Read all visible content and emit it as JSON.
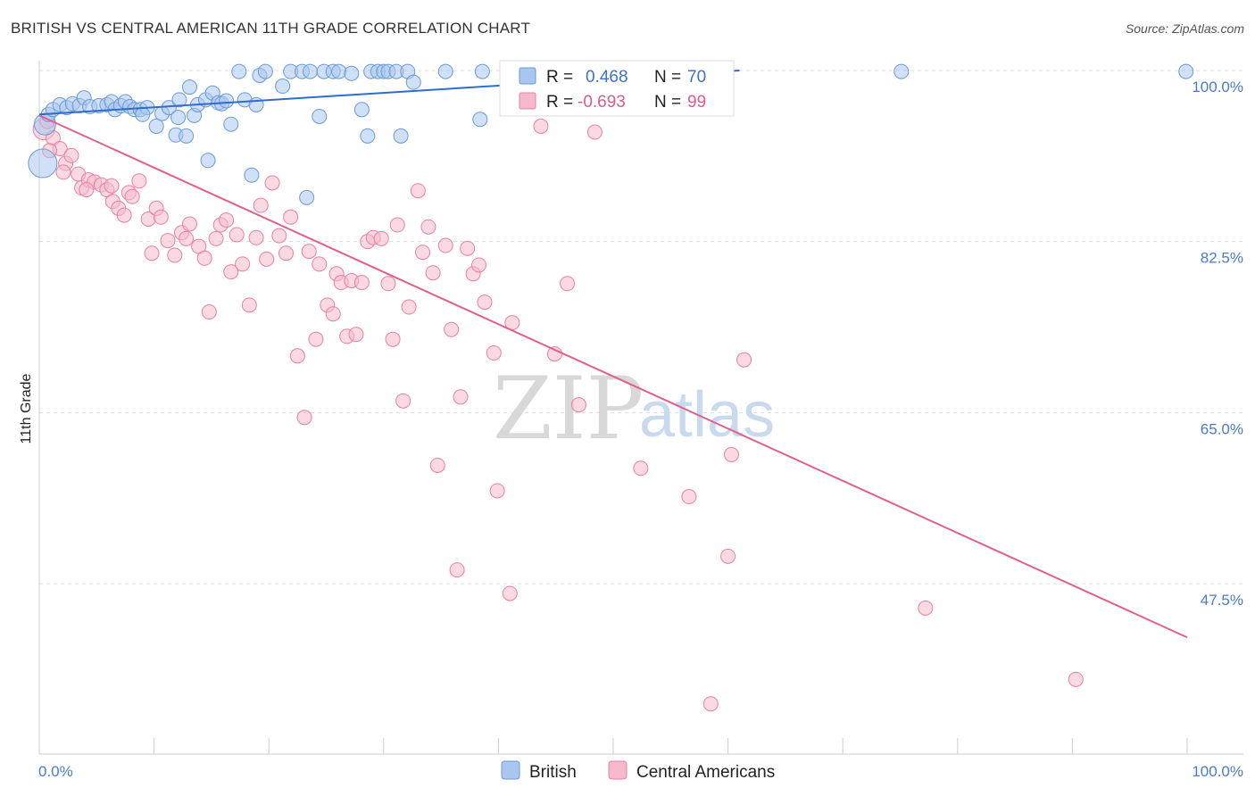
{
  "header": {
    "title": "BRITISH VS CENTRAL AMERICAN 11TH GRADE CORRELATION CHART",
    "source": "Source: ZipAtlas.com"
  },
  "watermark": {
    "zip": "ZIP",
    "atlas": "atlas"
  },
  "legend": {
    "r_label": "R =",
    "n_label": "N =",
    "british": {
      "r": "0.468",
      "n": "70"
    },
    "central": {
      "r": "-0.693",
      "n": "99"
    }
  },
  "bottom_legend": {
    "british": "British",
    "central": "Central Americans"
  },
  "colors": {
    "british_fill": "#a9c6ee",
    "british_stroke": "#6a9bd8",
    "british_line": "#2f6ccc",
    "central_fill": "#f6b9cc",
    "central_stroke": "#e8819f",
    "central_line": "#e0608e",
    "grid": "#dddddd",
    "tick_text": "#4a7cc9"
  },
  "chart_data": {
    "type": "scatter",
    "title": "BRITISH VS CENTRAL AMERICAN 11TH GRADE CORRELATION CHART",
    "xlabel": "",
    "ylabel": "11th Grade",
    "xlim": [
      0,
      100
    ],
    "ylim": [
      31,
      102
    ],
    "x_tick_labels": [
      "0.0%",
      "100.0%"
    ],
    "y_ticks": [
      47.5,
      65.0,
      82.5,
      100.0
    ],
    "y_tick_labels": [
      "47.5%",
      "65.0%",
      "82.5%",
      "100.0%"
    ],
    "grid": true,
    "legend_placement": "top-center",
    "series": [
      {
        "name": "British",
        "r": 0.468,
        "n": 70,
        "trendline": {
          "x": [
            0,
            61
          ],
          "y": [
            95.5,
            100.0
          ]
        },
        "points": [
          [
            0.3,
            90.5,
            16
          ],
          [
            0.5,
            94.5,
            12
          ],
          [
            0.8,
            95.5,
            8
          ],
          [
            1.2,
            96.0,
            8
          ],
          [
            1.8,
            96.5,
            8
          ],
          [
            2.4,
            96.2,
            8
          ],
          [
            2.9,
            96.6,
            8
          ],
          [
            3.5,
            96.4,
            8
          ],
          [
            3.9,
            97.2,
            8
          ],
          [
            4.4,
            96.3,
            8
          ],
          [
            5.2,
            96.4,
            8
          ],
          [
            5.9,
            96.5,
            8
          ],
          [
            6.3,
            96.8,
            8
          ],
          [
            6.6,
            96.0,
            8
          ],
          [
            7.1,
            96.4,
            8
          ],
          [
            7.5,
            96.8,
            8
          ],
          [
            7.9,
            96.3,
            8
          ],
          [
            8.3,
            96.0,
            8
          ],
          [
            8.8,
            96.0,
            8
          ],
          [
            9.4,
            96.2,
            8
          ],
          [
            9.0,
            95.5,
            8
          ],
          [
            10.2,
            94.3,
            8
          ],
          [
            10.7,
            95.6,
            8
          ],
          [
            11.3,
            96.2,
            8
          ],
          [
            11.9,
            93.4,
            8
          ],
          [
            12.1,
            95.2,
            8
          ],
          [
            12.2,
            97.0,
            8
          ],
          [
            12.8,
            93.3,
            8
          ],
          [
            13.1,
            98.3,
            8
          ],
          [
            13.5,
            95.4,
            8
          ],
          [
            13.8,
            96.5,
            8
          ],
          [
            14.5,
            97.0,
            8
          ],
          [
            14.7,
            90.8,
            8
          ],
          [
            15.1,
            97.7,
            8
          ],
          [
            15.6,
            96.7,
            8
          ],
          [
            15.9,
            96.6,
            8
          ],
          [
            16.3,
            96.9,
            8
          ],
          [
            16.7,
            94.5,
            8
          ],
          [
            17.4,
            99.9,
            8
          ],
          [
            17.9,
            97.0,
            8
          ],
          [
            18.5,
            89.3,
            8
          ],
          [
            18.9,
            96.5,
            8
          ],
          [
            19.2,
            99.5,
            8
          ],
          [
            19.7,
            99.9,
            8
          ],
          [
            21.2,
            98.4,
            8
          ],
          [
            21.9,
            99.9,
            8
          ],
          [
            22.9,
            99.9,
            8
          ],
          [
            23.3,
            87.0,
            8
          ],
          [
            23.6,
            99.9,
            8
          ],
          [
            24.4,
            95.3,
            8
          ],
          [
            24.8,
            99.9,
            8
          ],
          [
            25.6,
            99.9,
            8
          ],
          [
            26.1,
            99.9,
            8
          ],
          [
            27.2,
            99.7,
            8
          ],
          [
            28.1,
            96.0,
            8
          ],
          [
            28.6,
            93.3,
            8
          ],
          [
            28.9,
            99.9,
            8
          ],
          [
            29.5,
            99.9,
            8
          ],
          [
            30.0,
            99.9,
            8
          ],
          [
            30.4,
            99.9,
            8
          ],
          [
            31.1,
            99.9,
            8
          ],
          [
            31.5,
            93.3,
            8
          ],
          [
            32.1,
            99.9,
            8
          ],
          [
            32.6,
            98.8,
            8
          ],
          [
            35.4,
            99.9,
            8
          ],
          [
            38.4,
            95.0,
            8
          ],
          [
            38.6,
            99.9,
            8
          ],
          [
            47.2,
            99.9,
            8
          ],
          [
            75.1,
            99.9,
            8
          ],
          [
            99.9,
            99.9,
            8
          ]
        ]
      },
      {
        "name": "Central Americans",
        "r": -0.693,
        "n": 99,
        "trendline": {
          "x": [
            0,
            100
          ],
          "y": [
            95.4,
            42.0
          ]
        },
        "points": [
          [
            0.4,
            94.0,
            12
          ],
          [
            0.7,
            94.8,
            8
          ],
          [
            1.2,
            93.1,
            8
          ],
          [
            1.8,
            92.0,
            8
          ],
          [
            2.3,
            90.5,
            8
          ],
          [
            2.8,
            91.3,
            8
          ],
          [
            3.4,
            89.4,
            8
          ],
          [
            3.7,
            88.0,
            8
          ],
          [
            4.3,
            88.8,
            8
          ],
          [
            4.8,
            88.6,
            8
          ],
          [
            5.4,
            88.3,
            8
          ],
          [
            5.9,
            87.8,
            8
          ],
          [
            6.3,
            88.2,
            8
          ],
          [
            6.4,
            86.6,
            8
          ],
          [
            6.9,
            85.9,
            8
          ],
          [
            7.4,
            85.2,
            8
          ],
          [
            7.8,
            87.5,
            8
          ],
          [
            8.1,
            87.1,
            8
          ],
          [
            8.7,
            88.7,
            8
          ],
          [
            9.5,
            84.8,
            8
          ],
          [
            9.8,
            81.3,
            8
          ],
          [
            10.2,
            85.9,
            8
          ],
          [
            10.6,
            85.0,
            8
          ],
          [
            11.2,
            82.6,
            8
          ],
          [
            11.8,
            81.1,
            8
          ],
          [
            12.4,
            83.4,
            8
          ],
          [
            12.8,
            82.8,
            8
          ],
          [
            13.1,
            84.3,
            8
          ],
          [
            13.9,
            82.0,
            8
          ],
          [
            14.4,
            80.8,
            8
          ],
          [
            14.8,
            75.3,
            8
          ],
          [
            15.4,
            82.8,
            8
          ],
          [
            15.8,
            84.2,
            8
          ],
          [
            16.3,
            84.7,
            8
          ],
          [
            16.7,
            79.4,
            8
          ],
          [
            17.2,
            83.2,
            8
          ],
          [
            17.7,
            80.2,
            8
          ],
          [
            18.3,
            76.0,
            8
          ],
          [
            18.9,
            82.9,
            8
          ],
          [
            19.3,
            86.2,
            8
          ],
          [
            19.8,
            80.7,
            8
          ],
          [
            20.3,
            88.5,
            8
          ],
          [
            20.9,
            83.1,
            8
          ],
          [
            21.5,
            81.3,
            8
          ],
          [
            21.9,
            85.0,
            8
          ],
          [
            22.5,
            70.8,
            8
          ],
          [
            23.1,
            64.5,
            8
          ],
          [
            23.5,
            81.5,
            8
          ],
          [
            24.1,
            72.5,
            8
          ],
          [
            24.4,
            80.2,
            8
          ],
          [
            25.1,
            76.0,
            8
          ],
          [
            25.6,
            75.1,
            8
          ],
          [
            25.9,
            79.2,
            8
          ],
          [
            26.3,
            78.3,
            8
          ],
          [
            26.8,
            72.8,
            8
          ],
          [
            27.2,
            78.5,
            8
          ],
          [
            27.6,
            73.0,
            8
          ],
          [
            28.1,
            78.3,
            8
          ],
          [
            28.6,
            82.5,
            8
          ],
          [
            29.1,
            82.9,
            8
          ],
          [
            29.8,
            82.8,
            8
          ],
          [
            30.4,
            78.2,
            8
          ],
          [
            30.8,
            72.5,
            8
          ],
          [
            31.2,
            84.2,
            8
          ],
          [
            31.7,
            66.2,
            8
          ],
          [
            32.2,
            75.8,
            8
          ],
          [
            33.0,
            87.7,
            8
          ],
          [
            33.4,
            81.4,
            8
          ],
          [
            33.9,
            84.0,
            8
          ],
          [
            34.3,
            79.3,
            8
          ],
          [
            34.7,
            59.6,
            8
          ],
          [
            35.4,
            82.1,
            8
          ],
          [
            35.9,
            73.5,
            8
          ],
          [
            36.4,
            48.9,
            8
          ],
          [
            36.7,
            66.6,
            8
          ],
          [
            37.3,
            81.8,
            8
          ],
          [
            37.8,
            79.2,
            8
          ],
          [
            38.3,
            80.1,
            8
          ],
          [
            38.8,
            76.3,
            8
          ],
          [
            39.6,
            71.1,
            8
          ],
          [
            39.9,
            57.0,
            8
          ],
          [
            41.0,
            46.5,
            8
          ],
          [
            41.2,
            74.2,
            8
          ],
          [
            43.7,
            94.3,
            8
          ],
          [
            44.9,
            71.0,
            8
          ],
          [
            46.0,
            78.2,
            8
          ],
          [
            47.0,
            65.8,
            8
          ],
          [
            48.4,
            93.7,
            8
          ],
          [
            52.4,
            59.3,
            8
          ],
          [
            56.6,
            56.4,
            8
          ],
          [
            58.5,
            35.2,
            8
          ],
          [
            60.0,
            50.3,
            8
          ],
          [
            60.3,
            60.7,
            8
          ],
          [
            61.4,
            70.4,
            8
          ],
          [
            77.2,
            45.0,
            8
          ],
          [
            90.3,
            37.7,
            8
          ],
          [
            0.9,
            91.8,
            8
          ],
          [
            2.1,
            89.6,
            8
          ],
          [
            4.1,
            87.8,
            8
          ]
        ]
      }
    ]
  }
}
